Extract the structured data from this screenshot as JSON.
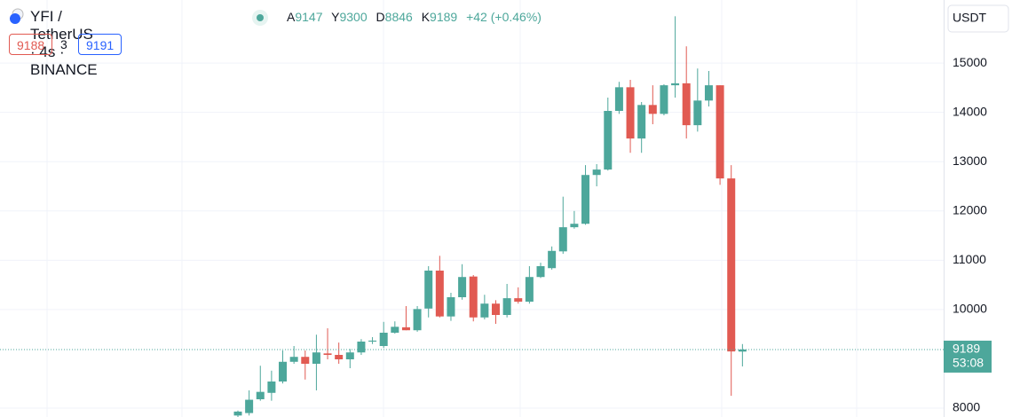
{
  "header": {
    "symbol": "YFI / TetherUS · 4s · BINANCE",
    "open_label": "A",
    "open": 9147,
    "high_label": "Y",
    "high": 9300,
    "low_label": "D",
    "low": 8846,
    "close_label": "K",
    "close": 9189,
    "change": "+42 (+0.46%)",
    "sell_price": 9188,
    "spread": 3,
    "buy_price": 9191,
    "currency": "USDT"
  },
  "chart_data": {
    "type": "candlestick",
    "up_color": "#4da79b",
    "down_color": "#e15a52",
    "open": [
      7850,
      7900,
      8180,
      8310,
      8540,
      8940,
      9040,
      8900,
      9110,
      9080,
      8990,
      9130,
      9350,
      9260,
      9530,
      9640,
      9580,
      10020,
      10790,
      9860,
      10250,
      10670,
      9840,
      10120,
      9890,
      10230,
      10160,
      10660,
      10840,
      11180,
      11670,
      11740,
      12730,
      12840,
      14030,
      14510,
      13470,
      14150,
      13970,
      14550,
      14590,
      13740,
      14240,
      14550,
      12660,
      9147
    ],
    "high": [
      7950,
      8360,
      8860,
      8760,
      9170,
      9260,
      9170,
      9490,
      9620,
      9330,
      9200,
      9400,
      9440,
      9750,
      9760,
      10070,
      10070,
      10880,
      11090,
      10340,
      10920,
      10700,
      10300,
      10190,
      10520,
      10450,
      10880,
      10950,
      11280,
      12290,
      12000,
      12930,
      12950,
      14300,
      14620,
      14660,
      14210,
      14550,
      14570,
      15950,
      15340,
      14890,
      14840,
      14550,
      12930,
      9300
    ],
    "low": [
      7820,
      7850,
      8150,
      8150,
      8500,
      8900,
      8580,
      8360,
      8990,
      8900,
      8810,
      9080,
      9300,
      9220,
      9510,
      9580,
      9550,
      9840,
      9840,
      9770,
      10200,
      9760,
      9800,
      9710,
      9840,
      10120,
      10120,
      10640,
      10810,
      11130,
      11640,
      11720,
      12500,
      12820,
      13970,
      13180,
      13180,
      13760,
      13940,
      14300,
      13470,
      13610,
      14120,
      12530,
      8250,
      8846
    ],
    "close": [
      7930,
      8170,
      8330,
      8540,
      8940,
      9040,
      8900,
      9130,
      9080,
      8990,
      9130,
      9350,
      9370,
      9530,
      9650,
      9580,
      10010,
      10790,
      9860,
      10250,
      10660,
      9840,
      10120,
      9890,
      10230,
      10160,
      10660,
      10880,
      11190,
      11670,
      11740,
      12730,
      12840,
      14030,
      14510,
      13470,
      14150,
      13970,
      14550,
      14590,
      13740,
      14240,
      14550,
      12660,
      9150,
      9189
    ],
    "ylim": [
      7820,
      16280
    ],
    "yticks": [
      8000,
      10000,
      11000,
      12000,
      13000,
      14000,
      15000
    ],
    "grid": true,
    "last_price": 9189,
    "countdown": "53:08"
  }
}
